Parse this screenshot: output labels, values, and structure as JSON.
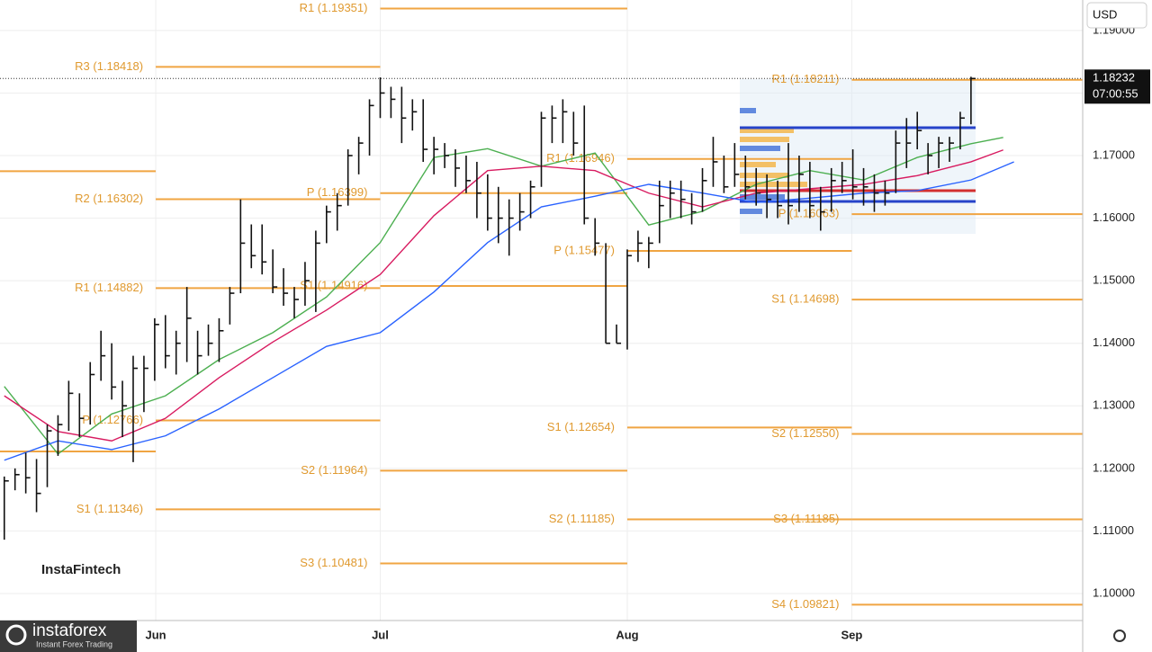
{
  "chart_data": {
    "type": "ohlc",
    "currency": "USD",
    "watermark": "InstaFintech",
    "ylim": [
      1.09568,
      1.19487
    ],
    "xlim": [
      -0.4,
      100.4
    ],
    "yticks": [
      {
        "value": 1.1,
        "label": "1.10000"
      },
      {
        "value": 1.11,
        "label": "1.11000"
      },
      {
        "value": 1.12,
        "label": "1.12000"
      },
      {
        "value": 1.13,
        "label": "1.13000"
      },
      {
        "value": 1.14,
        "label": "1.14000"
      },
      {
        "value": 1.15,
        "label": "1.15000"
      },
      {
        "value": 1.16,
        "label": "1.16000"
      },
      {
        "value": 1.17,
        "label": "1.17000"
      },
      {
        "value": 1.18,
        "label": "1.18000"
      },
      {
        "value": 1.19,
        "label": "1.19000"
      }
    ],
    "xticks": [
      {
        "value": 14.1,
        "label": "Jun"
      },
      {
        "value": 35,
        "label": "Jul"
      },
      {
        "value": 58,
        "label": "Aug"
      },
      {
        "value": 78.9,
        "label": "Sep"
      }
    ],
    "grid": true,
    "bar_color": "#111111",
    "high": [
      1.1187,
      1.12,
      1.1225,
      1.1215,
      1.127,
      1.1285,
      1.134,
      1.132,
      1.137,
      1.142,
      1.14,
      1.134,
      1.138,
      1.138,
      1.144,
      1.1445,
      1.142,
      1.149,
      1.142,
      1.143,
      1.144,
      1.149,
      1.163,
      1.159,
      1.159,
      1.155,
      1.152,
      1.149,
      1.153,
      1.158,
      1.162,
      1.164,
      1.171,
      1.173,
      1.179,
      1.1825,
      1.181,
      1.181,
      1.179,
      1.179,
      1.173,
      1.172,
      1.171,
      1.17,
      1.169,
      1.167,
      1.165,
      1.163,
      1.164,
      1.166,
      1.177,
      1.178,
      1.179,
      1.177,
      1.178,
      1.16,
      1.156,
      1.143,
      1.155,
      1.158,
      1.157,
      1.166,
      1.166,
      1.166,
      1.164,
      1.168,
      1.173,
      1.17,
      1.172,
      1.17,
      1.168,
      1.167,
      1.166,
      1.172,
      1.17,
      1.169,
      1.165,
      1.168,
      1.169,
      1.171,
      1.168,
      1.167,
      1.166,
      1.174,
      1.176,
      1.177,
      1.172,
      1.173,
      1.173,
      1.177,
      1.1826
    ],
    "low": [
      1.1086,
      1.1165,
      1.116,
      1.113,
      1.117,
      1.122,
      1.126,
      1.125,
      1.127,
      1.134,
      1.131,
      1.125,
      1.121,
      1.129,
      1.134,
      1.136,
      1.135,
      1.137,
      1.135,
      1.138,
      1.137,
      1.143,
      1.148,
      1.152,
      1.151,
      1.148,
      1.146,
      1.144,
      1.146,
      1.145,
      1.156,
      1.158,
      1.162,
      1.167,
      1.17,
      1.176,
      1.176,
      1.172,
      1.174,
      1.169,
      1.167,
      1.168,
      1.165,
      1.164,
      1.16,
      1.158,
      1.156,
      1.154,
      1.158,
      1.16,
      1.165,
      1.172,
      1.172,
      1.17,
      1.159,
      1.154,
      1.14,
      1.14,
      1.139,
      1.153,
      1.152,
      1.156,
      1.16,
      1.16,
      1.159,
      1.161,
      1.165,
      1.164,
      1.165,
      1.163,
      1.162,
      1.16,
      1.16,
      1.159,
      1.161,
      1.16,
      1.158,
      1.161,
      1.164,
      1.163,
      1.162,
      1.161,
      1.162,
      1.164,
      1.168,
      1.171,
      1.167,
      1.168,
      1.169,
      1.171,
      1.175
    ],
    "close": [
      1.118,
      1.119,
      1.1185,
      1.116,
      1.126,
      1.127,
      1.132,
      1.128,
      1.135,
      1.138,
      1.133,
      1.13,
      1.136,
      1.136,
      1.143,
      1.138,
      1.14,
      1.144,
      1.138,
      1.14,
      1.142,
      1.148,
      1.156,
      1.154,
      1.153,
      1.149,
      1.148,
      1.147,
      1.15,
      1.156,
      1.161,
      1.162,
      1.17,
      1.172,
      1.178,
      1.18,
      1.179,
      1.176,
      1.177,
      1.171,
      1.171,
      1.17,
      1.168,
      1.166,
      1.164,
      1.16,
      1.16,
      1.16,
      1.161,
      1.165,
      1.176,
      1.176,
      1.177,
      1.172,
      1.16,
      1.156,
      1.14,
      1.14,
      1.154,
      1.156,
      1.156,
      1.162,
      1.164,
      1.163,
      1.161,
      1.166,
      1.169,
      1.165,
      1.167,
      1.165,
      1.164,
      1.163,
      1.162,
      1.162,
      1.167,
      1.162,
      1.161,
      1.166,
      1.166,
      1.165,
      1.165,
      1.164,
      1.164,
      1.172,
      1.172,
      1.174,
      1.17,
      1.172,
      1.172,
      1.176,
      1.18232
    ],
    "series": [
      {
        "color": "#4caf50",
        "x": [
          0,
          5,
          10,
          15,
          20,
          25,
          30,
          35,
          40,
          45,
          50,
          55,
          60,
          65,
          70,
          75,
          80,
          85,
          90,
          93
        ],
        "values": [
          1.1331,
          1.1223,
          1.1287,
          1.1316,
          1.1374,
          1.1417,
          1.1474,
          1.1561,
          1.1697,
          1.1711,
          1.1683,
          1.1704,
          1.1589,
          1.1611,
          1.1654,
          1.1676,
          1.1661,
          1.1697,
          1.1719,
          1.1729
        ]
      },
      {
        "color": "#d81b60",
        "x": [
          0,
          5,
          10,
          15,
          20,
          25,
          30,
          35,
          40,
          45,
          50,
          55,
          60,
          65,
          70,
          75,
          80,
          85,
          90,
          93
        ],
        "values": [
          1.1316,
          1.1259,
          1.1244,
          1.128,
          1.1345,
          1.1402,
          1.1453,
          1.151,
          1.1604,
          1.1676,
          1.1683,
          1.1676,
          1.164,
          1.1618,
          1.164,
          1.1647,
          1.1654,
          1.1668,
          1.169,
          1.1709
        ]
      },
      {
        "color": "#2962ff",
        "x": [
          0,
          5,
          10,
          15,
          20,
          25,
          30,
          35,
          40,
          45,
          50,
          55,
          60,
          65,
          70,
          75,
          80,
          85,
          90,
          94
        ],
        "values": [
          1.1213,
          1.1244,
          1.123,
          1.1252,
          1.1295,
          1.1345,
          1.1395,
          1.1417,
          1.1482,
          1.1561,
          1.1618,
          1.1635,
          1.1654,
          1.164,
          1.1625,
          1.1632,
          1.164,
          1.1644,
          1.1661,
          1.169
        ]
      }
    ],
    "pivot_color": "#f0a542",
    "pivots": [
      {
        "start": -0.4,
        "end": 14.1,
        "levels": [
          {
            "value": 1.1675,
            "label": null
          },
          {
            "value": 1.1227,
            "label": null
          }
        ]
      },
      {
        "start": 14.1,
        "end": 35,
        "levels": [
          {
            "value": 1.18418,
            "label": "R3 (1.18418)"
          },
          {
            "value": 1.16302,
            "label": "R2 (1.16302)"
          },
          {
            "value": 1.14882,
            "label": "R1 (1.14882)"
          },
          {
            "value": 1.12766,
            "label": "P (1.12766)"
          },
          {
            "value": 1.11346,
            "label": "S1 (1.11346)"
          }
        ]
      },
      {
        "start": 35,
        "end": 58,
        "levels": [
          {
            "value": 1.19351,
            "label": "R1 (1.19351)"
          },
          {
            "value": 1.16399,
            "label": "P (1.16399)"
          },
          {
            "value": 1.14916,
            "label": "S1 (1.14916)"
          },
          {
            "value": 1.11964,
            "label": "S2 (1.11964)"
          },
          {
            "value": 1.10481,
            "label": "S3 (1.10481)"
          }
        ]
      },
      {
        "start": 58,
        "end": 78.9,
        "levels": [
          {
            "value": 1.16946,
            "label": "R1 (1.16946)"
          },
          {
            "value": 1.15477,
            "label": "P (1.15477)"
          },
          {
            "value": 1.12654,
            "label": "S1 (1.12654)"
          },
          {
            "value": 1.11185,
            "label": "S2 (1.11185)"
          }
        ]
      },
      {
        "start": 78.9,
        "end": 100.4,
        "levels": [
          {
            "value": 1.18211,
            "label": "R1 (1.18211)"
          },
          {
            "value": 1.16063,
            "label": "P (1.16063)"
          },
          {
            "value": 1.14698,
            "label": "S1 (1.14698)"
          },
          {
            "value": 1.1255,
            "label": "S2 (1.12550)"
          },
          {
            "value": 1.11185,
            "label": "S3 (1.11185)"
          },
          {
            "value": 1.09821,
            "label": "S4 (1.09821)"
          }
        ]
      }
    ],
    "last_price": {
      "value": 1.18232,
      "label": "1.18232"
    },
    "countdown": "07:00:55"
  },
  "brand": {
    "name": "instaforex",
    "tagline": "Instant Forex Trading"
  }
}
